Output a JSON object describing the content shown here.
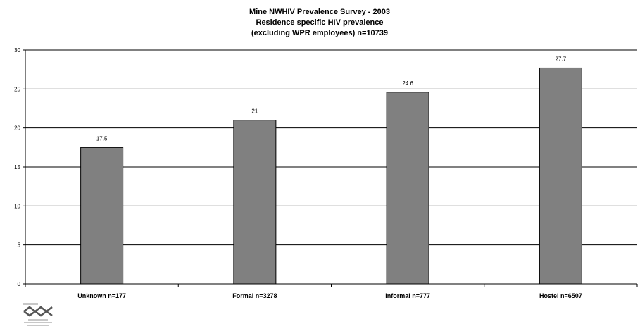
{
  "chart_data": {
    "type": "bar",
    "title_lines": [
      "Mine NWHIV Prevalence Survey - 2003",
      "Residence specific HIV prevalence",
      "(excluding WPR employees) n=10739"
    ],
    "categories": [
      "Unknown n=177",
      "Formal n=3278",
      "Informal n=777",
      "Hostel n=6507"
    ],
    "values": [
      17.5,
      21,
      24.6,
      27.7
    ],
    "data_labels": [
      "17.5",
      "21",
      "24.6",
      "27.7"
    ],
    "ylim": [
      0,
      30
    ],
    "yticks": [
      0,
      5,
      10,
      15,
      20,
      25,
      30
    ],
    "grid": true,
    "legend": "none",
    "bar_color": "#808080",
    "bar_edge_color": "#000000"
  },
  "logo": {
    "name": "aids-management-support-logo"
  }
}
